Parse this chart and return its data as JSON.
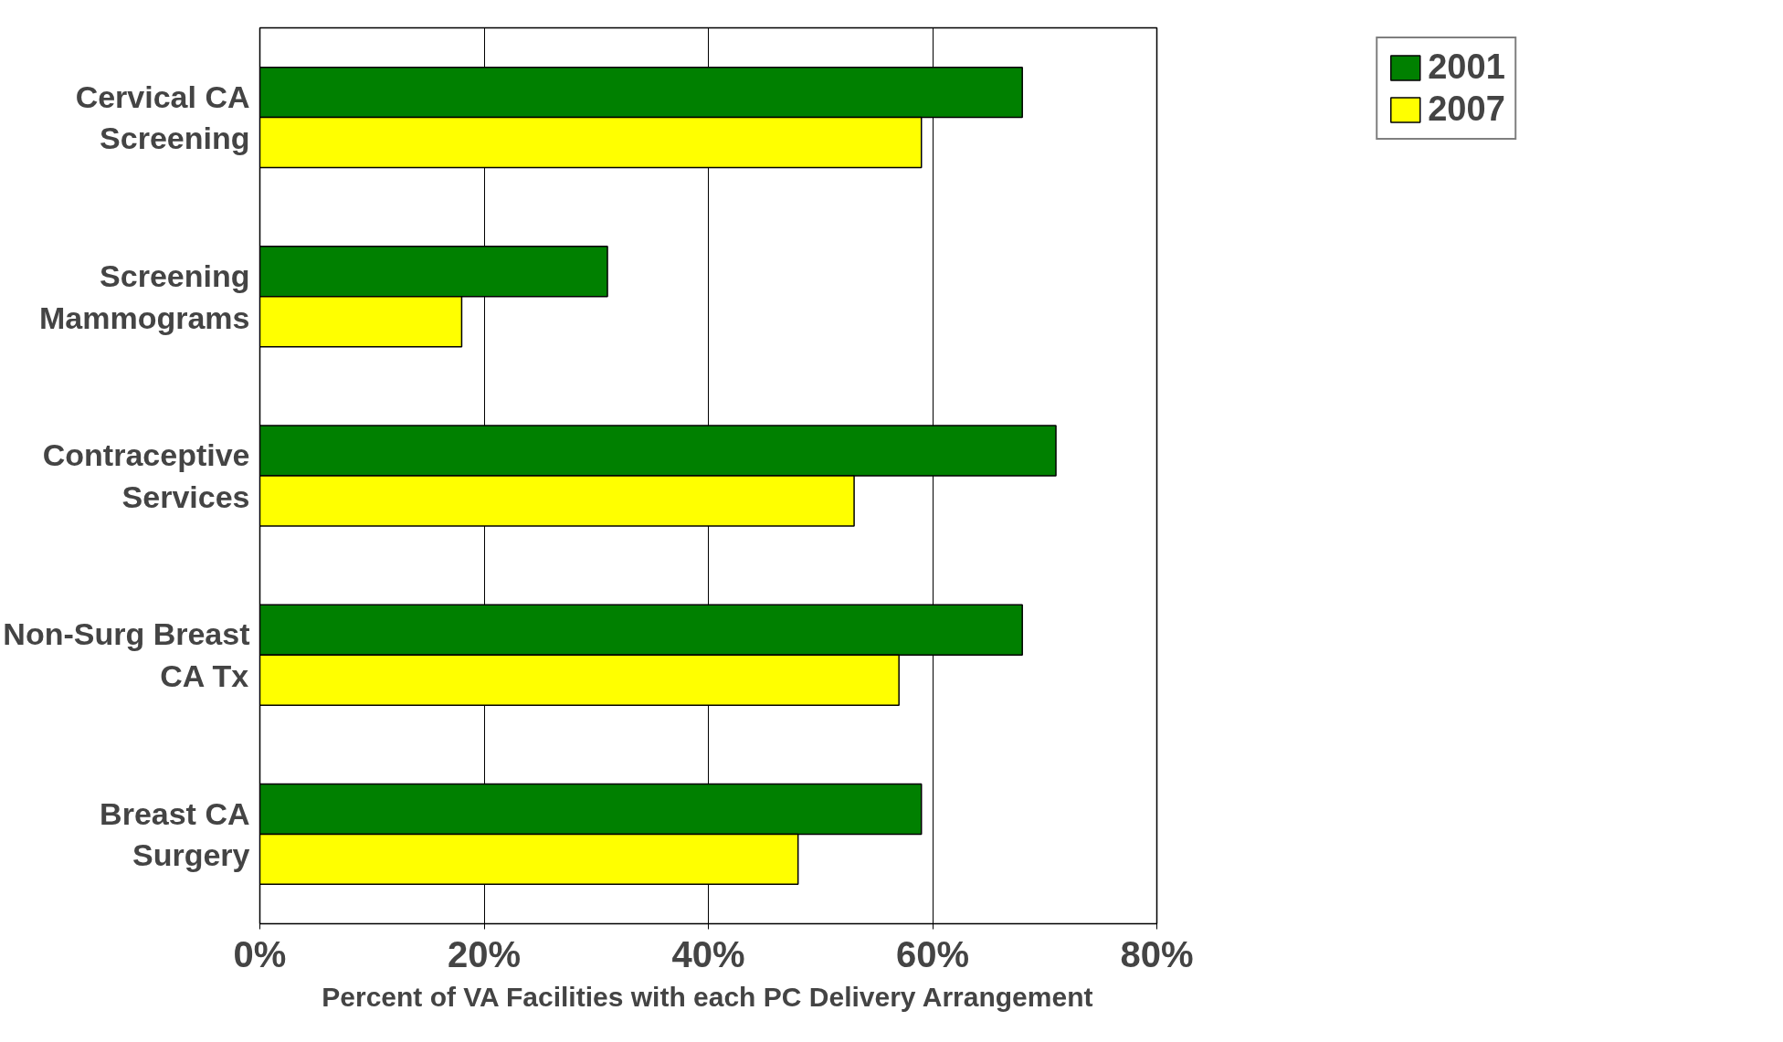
{
  "chart_data": {
    "type": "bar",
    "orientation": "horizontal",
    "categories": [
      "Cervical CA Screening",
      "Screening Mammograms",
      "Contraceptive Services",
      "Non-Surg Breast CA Tx",
      "Breast CA Surgery"
    ],
    "series": [
      {
        "name": "2001",
        "color": "#008000",
        "values": [
          68,
          31,
          71,
          68,
          59
        ]
      },
      {
        "name": "2007",
        "color": "#ffff00",
        "values": [
          59,
          18,
          53,
          57,
          48
        ]
      }
    ],
    "xlabel": "Percent of VA Facilities with each PC Delivery Arrangement",
    "xlim": [
      0,
      80
    ],
    "xticks": [
      {
        "value": 0,
        "label": "0%"
      },
      {
        "value": 20,
        "label": "20%"
      },
      {
        "value": 40,
        "label": "40%"
      },
      {
        "value": 60,
        "label": "60%"
      },
      {
        "value": 80,
        "label": "80%"
      }
    ],
    "grid": "x",
    "legend": "top right"
  }
}
